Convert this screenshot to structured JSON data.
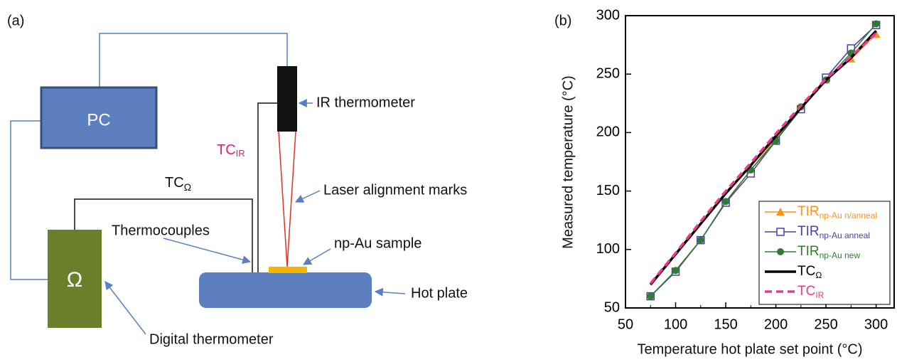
{
  "diagram": {
    "panel_label": "(a)",
    "pc": "PC",
    "ohm_meter": "Ω",
    "ir_thermometer": "IR thermometer",
    "tc_ir": {
      "main": "TC",
      "sub": "IR"
    },
    "tc_ohm": {
      "main": "TC",
      "sub": "Ω"
    },
    "laser_marks": "Laser alignment marks",
    "thermocouples": "Thermocouples",
    "sample": "np-Au sample",
    "hot_plate": "Hot plate",
    "digital_thermometer": "Digital thermometer"
  },
  "chart_data": {
    "type": "line",
    "panel_label": "(b)",
    "x_label": "Temperature hot plate set point (°C)",
    "y_label": "Measured temperature (°C)",
    "x": [
      75,
      100,
      125,
      150,
      175,
      200,
      225,
      250,
      275,
      300
    ],
    "xlim": [
      50,
      318
    ],
    "ylim": [
      50,
      300
    ],
    "xticks": [
      50,
      100,
      150,
      200,
      250,
      300
    ],
    "yticks": [
      50,
      100,
      150,
      200,
      250,
      300
    ],
    "minor_xticks": [
      75,
      125,
      175,
      225,
      275
    ],
    "grid": false,
    "legend": "lower right",
    "series": [
      {
        "name": "TIR",
        "subscript": "np-Au n/anneal",
        "color": "#f7941d",
        "marker": "triangle",
        "dash": false,
        "values": [
          60,
          82,
          108,
          140,
          168,
          195,
          220,
          245,
          263,
          284
        ]
      },
      {
        "name": "TIR",
        "subscript": "np-Au anneal",
        "color": "#4b3f9e",
        "marker": "square-open",
        "dash": false,
        "values": [
          60,
          81,
          108,
          140,
          165,
          193,
          220,
          247,
          272,
          292
        ]
      },
      {
        "name": "TIR",
        "subscript": "np-Au new",
        "color": "#2e7d32",
        "marker": "circle",
        "dash": false,
        "values": [
          60,
          82,
          108,
          141,
          168,
          193,
          222,
          245,
          268,
          293
        ]
      },
      {
        "name": "TC",
        "subscript": "Ω",
        "color": "#000000",
        "marker": "none",
        "dash": false,
        "values": [
          70,
          96,
          122,
          148,
          172,
          197,
          221,
          245,
          264,
          287
        ]
      },
      {
        "name": "TC",
        "subscript": "IR",
        "color": "#ec3b8d",
        "marker": "none",
        "dash": true,
        "values": [
          71,
          97,
          124,
          150,
          174,
          199,
          223,
          246,
          265,
          285
        ]
      }
    ]
  }
}
